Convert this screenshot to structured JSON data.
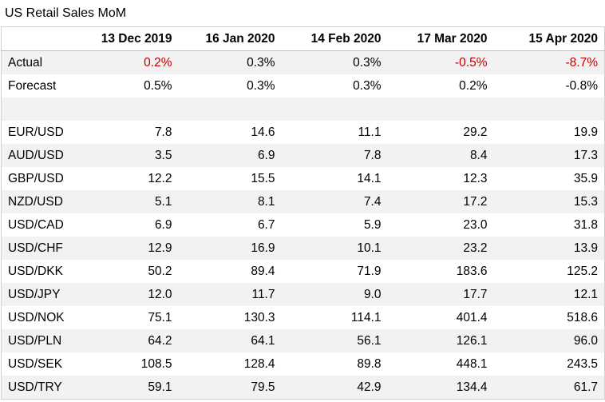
{
  "title": "US Retail Sales MoM",
  "columns": [
    "",
    "13 Dec 2019",
    "16 Jan 2020",
    "14 Feb 2020",
    "17 Mar 2020",
    "15 Apr 2020"
  ],
  "actual": {
    "label": "Actual",
    "values": [
      "0.2%",
      "0.3%",
      "0.3%",
      "-0.5%",
      "-8.7%"
    ],
    "highlight_color": "#c00000"
  },
  "forecast": {
    "label": "Forecast",
    "values": [
      "0.5%",
      "0.3%",
      "0.3%",
      "0.2%",
      "-0.8%"
    ]
  },
  "pairs": [
    {
      "label": "EUR/USD",
      "values": [
        "7.8",
        "14.6",
        "11.1",
        "29.2",
        "19.9"
      ]
    },
    {
      "label": "AUD/USD",
      "values": [
        "3.5",
        "6.9",
        "7.8",
        "8.4",
        "17.3"
      ]
    },
    {
      "label": "GBP/USD",
      "values": [
        "12.2",
        "15.5",
        "14.1",
        "12.3",
        "35.9"
      ]
    },
    {
      "label": "NZD/USD",
      "values": [
        "5.1",
        "8.1",
        "7.4",
        "17.2",
        "15.3"
      ]
    },
    {
      "label": "USD/CAD",
      "values": [
        "6.9",
        "6.7",
        "5.9",
        "23.0",
        "31.8"
      ]
    },
    {
      "label": "USD/CHF",
      "values": [
        "12.9",
        "16.9",
        "10.1",
        "23.2",
        "13.9"
      ]
    },
    {
      "label": "USD/DKK",
      "values": [
        "50.2",
        "89.4",
        "71.9",
        "183.6",
        "125.2"
      ]
    },
    {
      "label": "USD/JPY",
      "values": [
        "12.0",
        "11.7",
        "9.0",
        "17.7",
        "12.1"
      ]
    },
    {
      "label": "USD/NOK",
      "values": [
        "75.1",
        "130.3",
        "114.1",
        "401.4",
        "518.6"
      ]
    },
    {
      "label": "USD/PLN",
      "values": [
        "64.2",
        "64.1",
        "56.1",
        "126.1",
        "96.0"
      ]
    },
    {
      "label": "USD/SEK",
      "values": [
        "108.5",
        "128.4",
        "89.8",
        "448.1",
        "243.5"
      ]
    },
    {
      "label": "USD/TRY",
      "values": [
        "59.1",
        "79.5",
        "42.9",
        "134.4",
        "61.7"
      ]
    }
  ]
}
